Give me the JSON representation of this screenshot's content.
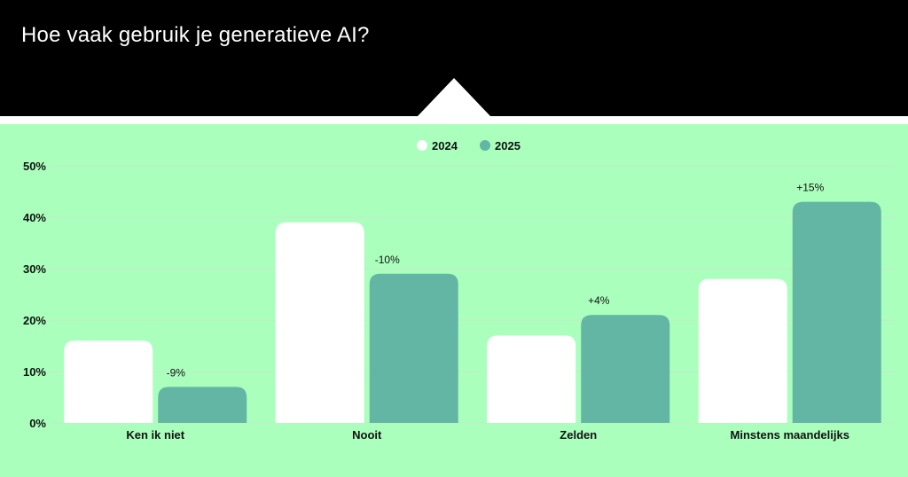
{
  "header": {
    "title": "Hoe vaak gebruik je generatieve AI?"
  },
  "colors": {
    "header_bg": "#000000",
    "panel_bg": "#aaffbd",
    "series_2024": "#ffffff",
    "series_2025": "#63b6a4",
    "text": "#111111",
    "grid": "#c4e8cc"
  },
  "chart_data": {
    "type": "bar",
    "categories": [
      "Ken ik niet",
      "Nooit",
      "Zelden",
      "Minstens maandelijks"
    ],
    "series": [
      {
        "name": "2024",
        "values": [
          16,
          39,
          17,
          28
        ],
        "color": "#ffffff"
      },
      {
        "name": "2025",
        "values": [
          7,
          29,
          21,
          43
        ],
        "color": "#63b6a4"
      }
    ],
    "annotations": [
      "-9%",
      "-10%",
      "+4%",
      "+15%"
    ],
    "ylim": [
      0,
      50
    ],
    "yticks": [
      0,
      10,
      20,
      30,
      40,
      50
    ],
    "ytick_labels": [
      "0%",
      "10%",
      "20%",
      "30%",
      "40%",
      "50%"
    ],
    "legend": "top-center",
    "grid": true
  }
}
